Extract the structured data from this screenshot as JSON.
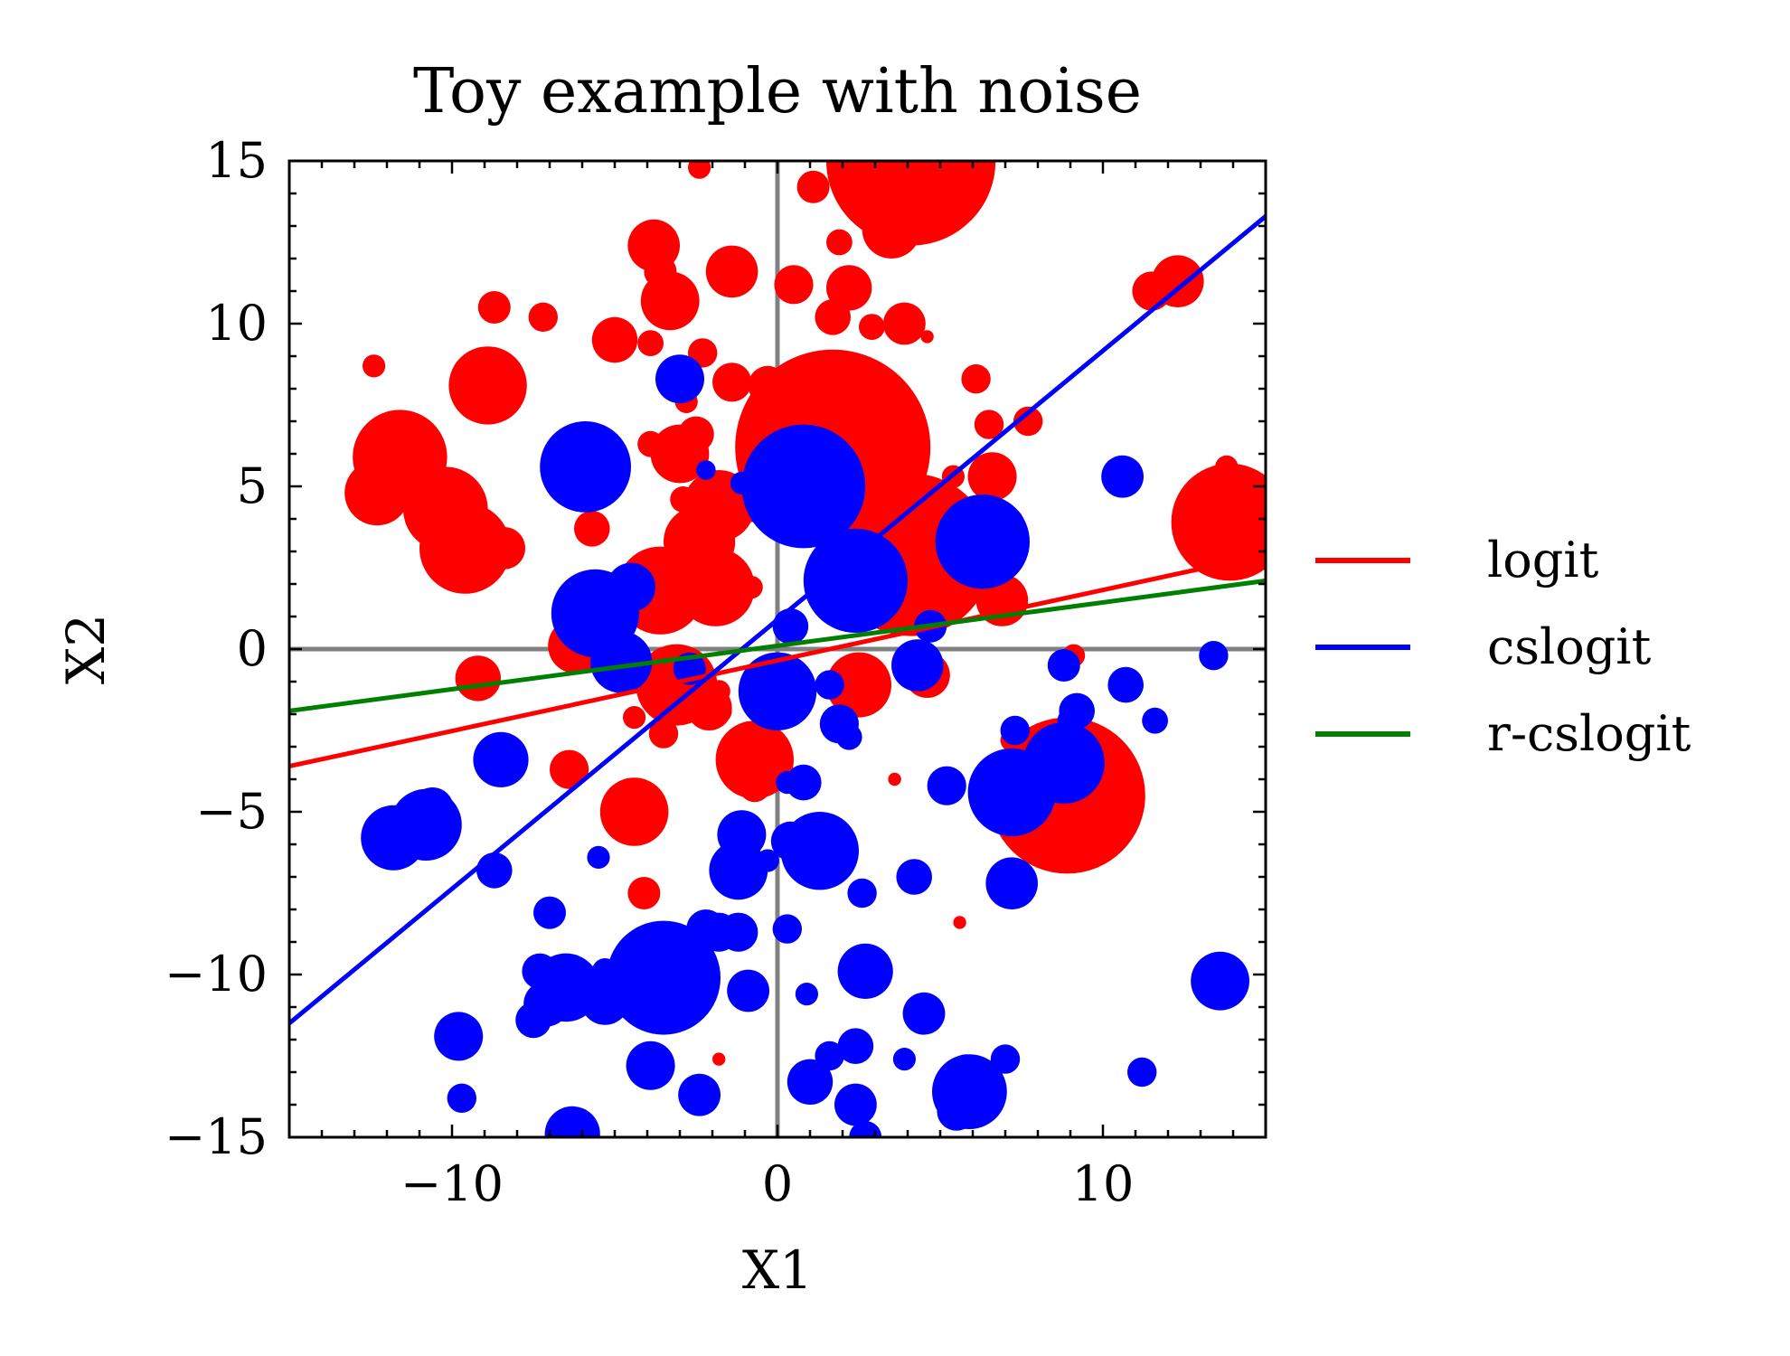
{
  "chart_data": {
    "type": "scatter",
    "title": "Toy example with noise",
    "xlabel": "X1",
    "ylabel": "X2",
    "xlim": [
      -15,
      15
    ],
    "ylim": [
      -15,
      15
    ],
    "xticks": [
      -10,
      0,
      10
    ],
    "xtick_labels": [
      "−10",
      "0",
      "10"
    ],
    "yticks": [
      -15,
      -10,
      -5,
      0,
      5,
      10,
      15
    ],
    "ytick_labels": [
      "−15",
      "−10",
      "−5",
      "0",
      "5",
      "10",
      "15"
    ],
    "reference_lines": {
      "x": 0,
      "y": 0,
      "color": "#808080"
    },
    "legend_position": "right",
    "point_series": [
      {
        "color": "#ff0000",
        "points": [
          [
            4.1,
            15.0,
            2.6
          ],
          [
            1.1,
            14.2,
            0.5
          ],
          [
            -2.4,
            14.8,
            0.35
          ],
          [
            -3.8,
            12.4,
            0.8
          ],
          [
            3.5,
            12.9,
            0.9
          ],
          [
            1.9,
            12.5,
            0.4
          ],
          [
            -3.6,
            11.6,
            0.5
          ],
          [
            -1.4,
            11.6,
            0.8
          ],
          [
            0.5,
            11.2,
            0.6
          ],
          [
            2.2,
            11.1,
            0.7
          ],
          [
            -3.3,
            10.7,
            0.9
          ],
          [
            -8.7,
            10.5,
            0.5
          ],
          [
            -7.2,
            10.2,
            0.45
          ],
          [
            1.7,
            10.2,
            0.55
          ],
          [
            3.9,
            10.0,
            0.65
          ],
          [
            2.9,
            9.9,
            0.4
          ],
          [
            11.5,
            11.0,
            0.6
          ],
          [
            12.3,
            11.3,
            0.8
          ],
          [
            -5.0,
            9.5,
            0.7
          ],
          [
            -3.9,
            9.4,
            0.4
          ],
          [
            -2.3,
            9.1,
            0.45
          ],
          [
            -12.4,
            8.7,
            0.35
          ],
          [
            -8.9,
            8.1,
            1.2
          ],
          [
            -1.4,
            8.2,
            0.6
          ],
          [
            -0.3,
            8.1,
            0.6
          ],
          [
            -2.8,
            7.6,
            0.35
          ],
          [
            1.7,
            7.4,
            0.4
          ],
          [
            2.4,
            7.7,
            0.4
          ],
          [
            6.1,
            8.3,
            0.45
          ],
          [
            1.7,
            6.2,
            3.0
          ],
          [
            6.5,
            6.9,
            0.45
          ],
          [
            7.7,
            7.0,
            0.45
          ],
          [
            -11.6,
            5.9,
            1.45
          ],
          [
            -2.5,
            6.6,
            0.55
          ],
          [
            -3.9,
            6.3,
            0.4
          ],
          [
            -3.0,
            6.0,
            0.9
          ],
          [
            -12.3,
            4.8,
            1.0
          ],
          [
            -10.2,
            4.3,
            1.3
          ],
          [
            -1.8,
            4.4,
            1.1
          ],
          [
            -2.9,
            4.6,
            0.4
          ],
          [
            -0.8,
            4.3,
            0.4
          ],
          [
            6.6,
            5.3,
            0.75
          ],
          [
            3.1,
            4.9,
            0.45
          ],
          [
            5.4,
            5.3,
            0.35
          ],
          [
            2.3,
            4.3,
            1.2
          ],
          [
            0.4,
            4.1,
            0.65
          ],
          [
            13.8,
            5.6,
            0.35
          ],
          [
            13.9,
            3.9,
            1.8
          ],
          [
            -9.6,
            3.1,
            1.4
          ],
          [
            -8.4,
            3.1,
            0.65
          ],
          [
            -5.7,
            3.7,
            0.55
          ],
          [
            -2.4,
            3.3,
            1.1
          ],
          [
            -1.9,
            3.4,
            0.35
          ],
          [
            7.0,
            3.8,
            0.6
          ],
          [
            4.1,
            2.9,
            2.5
          ],
          [
            3.9,
            2.3,
            0.6
          ],
          [
            -3.6,
            1.8,
            1.35
          ],
          [
            -2.7,
            1.7,
            0.6
          ],
          [
            -1.9,
            1.9,
            1.2
          ],
          [
            -0.8,
            1.9,
            0.35
          ],
          [
            -5.6,
            1.7,
            0.45
          ],
          [
            6.9,
            1.5,
            0.8
          ],
          [
            -6.2,
            0.1,
            0.85
          ],
          [
            -9.2,
            -0.9,
            0.7
          ],
          [
            -3.1,
            -1.1,
            1.25
          ],
          [
            -2.1,
            -1.8,
            0.7
          ],
          [
            -1.8,
            -1.3,
            0.35
          ],
          [
            -1.8,
            -1.9,
            0.4
          ],
          [
            2.5,
            -1.1,
            1.0
          ],
          [
            4.6,
            -0.8,
            0.7
          ],
          [
            9.1,
            -0.2,
            0.35
          ],
          [
            -3.5,
            -2.6,
            0.45
          ],
          [
            -4.4,
            -2.1,
            0.35
          ],
          [
            -0.7,
            -3.4,
            1.2
          ],
          [
            -0.7,
            -4.2,
            0.5
          ],
          [
            -6.4,
            -3.7,
            0.6
          ],
          [
            7.2,
            -2.8,
            0.35
          ],
          [
            -4.4,
            -5.0,
            1.05
          ],
          [
            -4.1,
            -7.5,
            0.5
          ],
          [
            -6.7,
            -9.9,
            0.5
          ],
          [
            8.9,
            -4.5,
            2.4
          ],
          [
            3.6,
            -4.0,
            0.2
          ],
          [
            5.6,
            -8.4,
            0.2
          ],
          [
            -1.8,
            -12.6,
            0.2
          ],
          [
            4.6,
            9.6,
            0.2
          ]
        ]
      },
      {
        "color": "#0000ff",
        "points": [
          [
            -3.0,
            8.3,
            0.75
          ],
          [
            -5.9,
            5.6,
            1.4
          ],
          [
            -1.1,
            5.1,
            0.35
          ],
          [
            -2.2,
            5.5,
            0.3
          ],
          [
            -0.5,
            5.5,
            0.3
          ],
          [
            0.8,
            5.0,
            1.9
          ],
          [
            10.6,
            5.3,
            0.65
          ],
          [
            6.3,
            3.3,
            1.45
          ],
          [
            -4.5,
            1.9,
            0.75
          ],
          [
            -5.6,
            1.1,
            1.35
          ],
          [
            2.4,
            2.1,
            1.6
          ],
          [
            0.4,
            0.7,
            0.55
          ],
          [
            -4.8,
            -0.4,
            0.95
          ],
          [
            -2.7,
            -0.6,
            0.5
          ],
          [
            4.3,
            -0.5,
            0.8
          ],
          [
            4.7,
            0.7,
            0.5
          ],
          [
            8.8,
            -0.5,
            0.5
          ],
          [
            10.7,
            -1.1,
            0.55
          ],
          [
            13.4,
            -0.2,
            0.45
          ],
          [
            0.0,
            -1.3,
            1.2
          ],
          [
            1.6,
            -1.1,
            0.45
          ],
          [
            9.2,
            -1.9,
            0.55
          ],
          [
            9.0,
            -2.2,
            0.4
          ],
          [
            11.6,
            -2.2,
            0.4
          ],
          [
            1.9,
            -2.3,
            0.6
          ],
          [
            2.2,
            -2.7,
            0.4
          ],
          [
            7.3,
            -2.5,
            0.45
          ],
          [
            -8.5,
            -3.4,
            0.85
          ],
          [
            0.3,
            -4.1,
            0.35
          ],
          [
            0.8,
            -4.1,
            0.55
          ],
          [
            8.8,
            -3.5,
            1.25
          ],
          [
            7.2,
            -4.4,
            1.35
          ],
          [
            5.2,
            -4.2,
            0.6
          ],
          [
            -10.6,
            -4.9,
            0.65
          ],
          [
            -10.8,
            -5.4,
            1.1
          ],
          [
            -11.8,
            -5.8,
            1.0
          ],
          [
            -1.1,
            -5.7,
            0.75
          ],
          [
            0.4,
            -5.9,
            0.6
          ],
          [
            1.3,
            -6.2,
            1.2
          ],
          [
            -5.5,
            -6.4,
            0.35
          ],
          [
            -1.2,
            -6.8,
            0.9
          ],
          [
            -0.3,
            -6.5,
            0.35
          ],
          [
            4.2,
            -7.0,
            0.55
          ],
          [
            7.2,
            -7.2,
            0.8
          ],
          [
            2.6,
            -7.5,
            0.45
          ],
          [
            -8.7,
            -6.8,
            0.55
          ],
          [
            -7.0,
            -8.1,
            0.5
          ],
          [
            -2.2,
            -8.6,
            0.6
          ],
          [
            -1.8,
            -8.7,
            0.6
          ],
          [
            -1.2,
            -8.7,
            0.6
          ],
          [
            0.3,
            -8.6,
            0.45
          ],
          [
            -4.1,
            -9.2,
            0.4
          ],
          [
            -3.5,
            -10.1,
            1.75
          ],
          [
            2.7,
            -9.9,
            0.85
          ],
          [
            -7.3,
            -9.9,
            0.55
          ],
          [
            -6.5,
            -10.4,
            1.05
          ],
          [
            -5.3,
            -9.9,
            0.4
          ],
          [
            -5.3,
            -10.8,
            0.75
          ],
          [
            -0.9,
            -10.5,
            0.65
          ],
          [
            0.9,
            -10.6,
            0.35
          ],
          [
            -7.1,
            -10.9,
            0.7
          ],
          [
            13.6,
            -10.2,
            0.9
          ],
          [
            4.5,
            -11.2,
            0.65
          ],
          [
            -7.5,
            -11.4,
            0.55
          ],
          [
            -9.8,
            -11.9,
            0.75
          ],
          [
            2.4,
            -12.2,
            0.55
          ],
          [
            1.6,
            -12.5,
            0.45
          ],
          [
            3.9,
            -12.6,
            0.35
          ],
          [
            7.0,
            -12.6,
            0.45
          ],
          [
            -3.9,
            -12.8,
            0.75
          ],
          [
            5.8,
            -13.0,
            0.55
          ],
          [
            11.2,
            -13.0,
            0.45
          ],
          [
            1.0,
            -13.3,
            0.7
          ],
          [
            5.9,
            -13.6,
            1.15
          ],
          [
            -2.4,
            -13.7,
            0.65
          ],
          [
            2.4,
            -14.0,
            0.65
          ],
          [
            5.5,
            -14.2,
            0.6
          ],
          [
            -9.7,
            -13.8,
            0.45
          ],
          [
            -6.3,
            -14.9,
            0.85
          ],
          [
            2.7,
            -15.0,
            0.5
          ]
        ]
      }
    ],
    "series": [
      {
        "name": "logit",
        "color": "#ff0000",
        "x": [
          -15,
          15
        ],
        "y": [
          -3.6,
          2.9
        ]
      },
      {
        "name": "cslogit",
        "color": "#0000ff",
        "x": [
          -15,
          15
        ],
        "y": [
          -11.5,
          13.3
        ]
      },
      {
        "name": "r-cslogit",
        "color": "#008000",
        "x": [
          -15,
          15
        ],
        "y": [
          -1.9,
          2.1
        ]
      }
    ]
  }
}
